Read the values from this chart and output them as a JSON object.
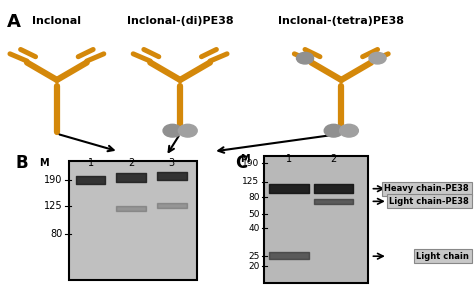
{
  "title_A": "A",
  "title_B": "B",
  "title_C": "C",
  "label1": "Inclonal",
  "label2": "Inclonal-(di)PE38",
  "label3": "Inclonal-(tetra)PE38",
  "bg_color": "#f0f0f0",
  "panel_bg": "#d8d8d8",
  "gel_bg": "#c8c8c8",
  "orange": "#D4880A",
  "gray_ball": "#888888",
  "marker_labels_B": [
    "190",
    "125",
    "80"
  ],
  "marker_labels_C": [
    "190",
    "125",
    "80",
    "50",
    "40",
    "25",
    "20"
  ],
  "band_labels_C": [
    "Heavy chain-PE38",
    "Light chain-PE38",
    "Light chain"
  ],
  "lane_labels_B": [
    "1",
    "2",
    "3"
  ],
  "lane_labels_C": [
    "1",
    "2"
  ]
}
